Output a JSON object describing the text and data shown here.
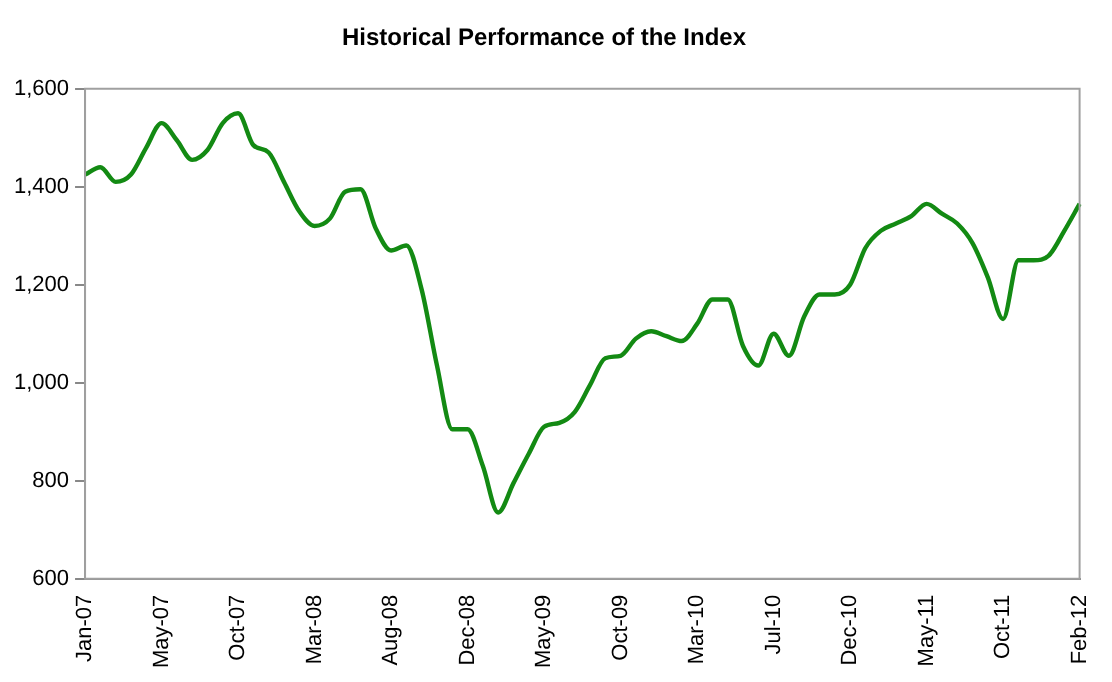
{
  "chart_data": {
    "type": "line",
    "title": "Historical Performance of the Index",
    "categories": [
      "Jan-07",
      null,
      null,
      null,
      null,
      "May-07",
      null,
      null,
      null,
      null,
      "Oct-07",
      null,
      null,
      null,
      null,
      "Mar-08",
      null,
      null,
      null,
      null,
      "Aug-08",
      null,
      null,
      null,
      null,
      "Dec-08",
      null,
      null,
      null,
      null,
      "May-09",
      null,
      null,
      null,
      null,
      "Oct-09",
      null,
      null,
      null,
      null,
      "Mar-10",
      null,
      null,
      null,
      null,
      "Jul-10",
      null,
      null,
      null,
      null,
      "Dec-10",
      null,
      null,
      null,
      null,
      "May-11",
      null,
      null,
      null,
      null,
      "Oct-11",
      null,
      null,
      null,
      null,
      "Feb-12"
    ],
    "series": [
      {
        "color": "#138a13",
        "values": [
          1425,
          1440,
          1410,
          1425,
          1480,
          1530,
          1495,
          1455,
          1475,
          1530,
          1550,
          1485,
          1470,
          1410,
          1350,
          1320,
          1335,
          1390,
          1395,
          1315,
          1270,
          1280,
          1190,
          1035,
          905,
          905,
          830,
          735,
          795,
          855,
          910,
          918,
          940,
          995,
          1050,
          1055,
          1090,
          1105,
          1095,
          1085,
          1120,
          1170,
          1170,
          1075,
          1035,
          1100,
          1055,
          1135,
          1180,
          1180,
          1200,
          1275,
          1310,
          1325,
          1340,
          1365,
          1345,
          1325,
          1285,
          1215,
          1130,
          1250,
          1250,
          1260,
          1310,
          1365
        ]
      }
    ],
    "ylim": [
      600,
      1600
    ],
    "yticks": [
      {
        "value": 600,
        "label": "600"
      },
      {
        "value": 800,
        "label": "800"
      },
      {
        "value": 1000,
        "label": "1,000"
      },
      {
        "value": 1200,
        "label": "1,200"
      },
      {
        "value": 1400,
        "label": "1,400"
      },
      {
        "value": 1600,
        "label": "1,600"
      }
    ],
    "grid": false,
    "legend": false,
    "marker": "none",
    "line_style": "solid"
  }
}
